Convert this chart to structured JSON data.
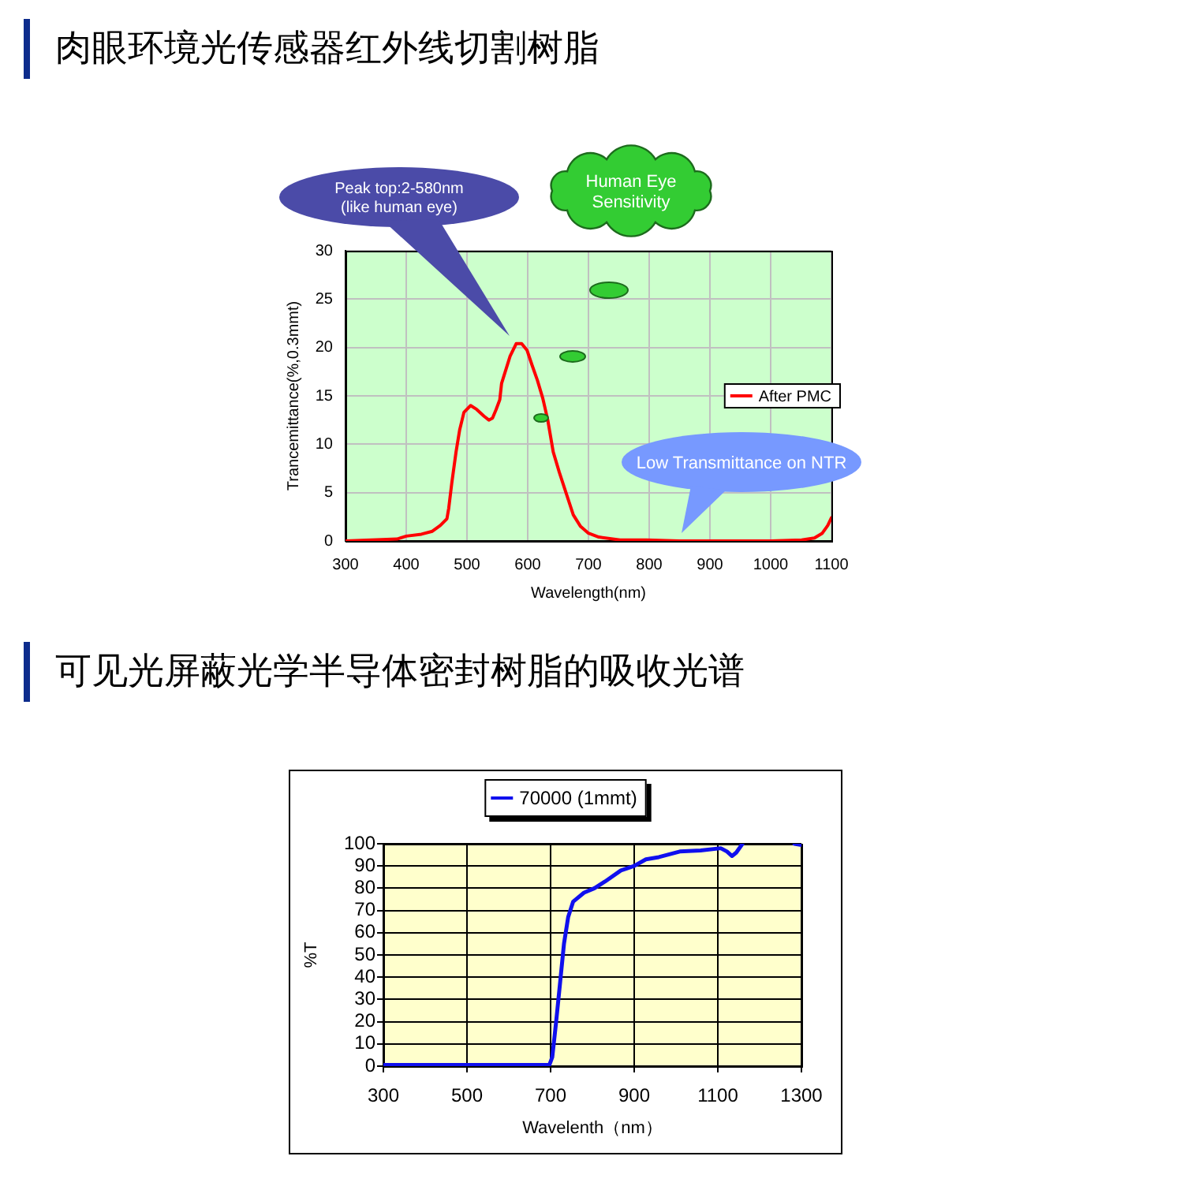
{
  "chart_data": [
    {
      "type": "line",
      "title": "肉眼环境光传感器红外线切割树脂",
      "xlabel": "Wavelength(nm)",
      "ylabel": "Trancemittance(%,0.3mmt)",
      "series": [
        {
          "name": "After PMC",
          "color": "#ff0000",
          "x": [
            300,
            385,
            400,
            425,
            443,
            456,
            467,
            470,
            475,
            482,
            488,
            495,
            506,
            516,
            528,
            536,
            542,
            548,
            554,
            557,
            564,
            571,
            581,
            590,
            599,
            607,
            616,
            625,
            633,
            642,
            652,
            664,
            675,
            687,
            700,
            717,
            752,
            795,
            850,
            925,
            1000,
            1051,
            1072,
            1085,
            1094,
            1100
          ],
          "values": [
            0,
            0.2,
            0.5,
            0.7,
            1,
            1.6,
            2.3,
            3.4,
            6,
            9.2,
            11.5,
            13.3,
            14,
            13.6,
            12.9,
            12.5,
            12.7,
            13.6,
            14.6,
            16.3,
            17.7,
            19.1,
            20.4,
            20.4,
            19.7,
            18.2,
            16.6,
            14.7,
            12.5,
            9.2,
            7.1,
            4.8,
            2.7,
            1.5,
            0.8,
            0.4,
            0.1,
            0.1,
            0,
            0,
            0,
            0.1,
            0.3,
            0.8,
            1.6,
            2.4
          ]
        }
      ],
      "xlim": [
        300,
        1100
      ],
      "xticks": [
        300,
        400,
        500,
        600,
        700,
        800,
        900,
        1000,
        1100
      ],
      "ylim": [
        0,
        30
      ],
      "yticks": [
        0,
        5,
        10,
        15,
        20,
        25,
        30
      ],
      "grid": true,
      "legend": "right",
      "annotations": [
        "Peak top:2-580nm\n(like human eye)",
        "Human Eye\nSensitivity",
        "Low Transmittance on NTR"
      ]
    },
    {
      "type": "line",
      "title": "可见光屏蔽光学半导体密封树脂的吸收光谱",
      "xlabel": "Wavelenth（nm）",
      "ylabel": "%T",
      "series": [
        {
          "name": "70000 (1mmt)",
          "color": "#1010ee",
          "x": [
            300,
            697,
            704,
            713,
            723,
            732,
            742,
            754,
            780,
            805,
            830,
            868,
            900,
            928,
            959,
            1009,
            1059,
            1107,
            1122,
            1134,
            1144,
            1159,
            1220,
            1283,
            1300
          ],
          "values": [
            0.5,
            0.5,
            4,
            19.5,
            38,
            55,
            67,
            74,
            78,
            80,
            83,
            88,
            90,
            93,
            94,
            96.5,
            97,
            98,
            96.5,
            94.5,
            96,
            100,
            null,
            100,
            99.5
          ]
        }
      ],
      "xlim": [
        300,
        1300
      ],
      "xticks": [
        300,
        500,
        700,
        900,
        1100,
        1300
      ],
      "ylim": [
        0,
        100
      ],
      "yticks": [
        0,
        10,
        20,
        30,
        40,
        50,
        60,
        70,
        80,
        90,
        100
      ],
      "grid": true,
      "legend": "top"
    }
  ]
}
